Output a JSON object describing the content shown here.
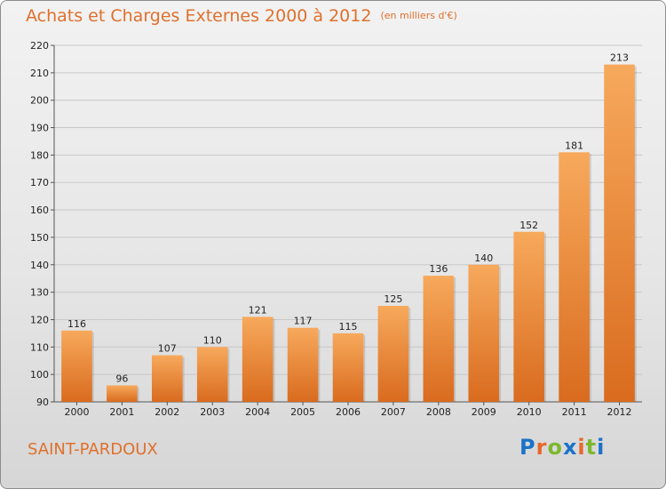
{
  "header": {
    "title": "Achats et Charges Externes 2000 à 2012",
    "subtitle": "(en milliers d'€)"
  },
  "footer": {
    "commune": "SAINT-PARDOUX",
    "logo_letters": [
      {
        "ch": "P",
        "color": "#1a73c8"
      },
      {
        "ch": "r",
        "color": "#e8672a"
      },
      {
        "ch": "o",
        "color": "#7cb82f"
      },
      {
        "ch": "x",
        "color": "#1a73c8"
      },
      {
        "ch": "i",
        "color": "#e8672a"
      },
      {
        "ch": "t",
        "color": "#7cb82f"
      },
      {
        "ch": "i",
        "color": "#1a73c8"
      }
    ]
  },
  "colors": {
    "accent": "#e0702c",
    "bar_top": "#f7a95c",
    "bar_bottom": "#d96b1e",
    "grid": "#c8c8c8"
  },
  "chart_data": {
    "type": "bar",
    "title": "Achats et Charges Externes 2000 à 2012",
    "subtitle": "(en milliers d'€)",
    "categories": [
      "2000",
      "2001",
      "2002",
      "2003",
      "2004",
      "2005",
      "2006",
      "2007",
      "2008",
      "2009",
      "2010",
      "2011",
      "2012"
    ],
    "values": [
      116,
      96,
      107,
      110,
      121,
      117,
      115,
      125,
      136,
      140,
      152,
      181,
      213
    ],
    "ylim": [
      90,
      220
    ],
    "yticks": [
      90,
      100,
      110,
      120,
      130,
      140,
      150,
      160,
      170,
      180,
      190,
      200,
      210,
      220
    ],
    "grid": true,
    "data_labels": true
  }
}
